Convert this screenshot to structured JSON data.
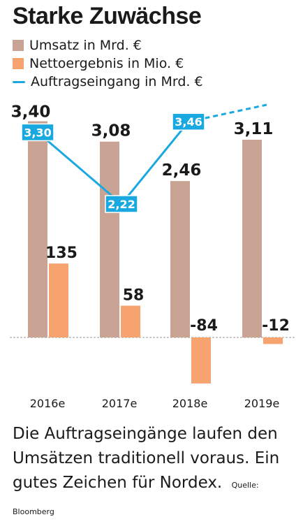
{
  "title": "Starke Zuwächse",
  "colors": {
    "umsatz": "#c9a394",
    "netto": "#f7a36f",
    "auftrag": "#19a9e0",
    "text": "#1a1a1a"
  },
  "caption": "Die Auftragseingänge laufen den Umsätzen traditionell voraus. Ein gutes Zeichen für Nordex.",
  "source": "Quelle: Bloomberg",
  "chart_data": {
    "type": "bar",
    "categories": [
      "2016e",
      "2017e",
      "2018e",
      "2019e"
    ],
    "series": [
      {
        "name": "Umsatz in Mrd. €",
        "type": "bar",
        "values": [
          3.4,
          3.08,
          2.46,
          3.11
        ],
        "labels": [
          "3,40",
          "3,08",
          "2,46",
          "3,11"
        ]
      },
      {
        "name": "Nettoergebnis in Mio. €",
        "type": "bar",
        "values": [
          135,
          58,
          -84,
          -12
        ],
        "labels": [
          "135",
          "58",
          "-84",
          "-12"
        ]
      },
      {
        "name": "Auftragseingang in Mrd. €",
        "type": "line",
        "values": [
          3.3,
          2.22,
          3.46,
          3.6
        ],
        "labels": [
          "3,30",
          "2,22",
          "3,46",
          ""
        ],
        "dashed_last_segment": true
      }
    ]
  }
}
